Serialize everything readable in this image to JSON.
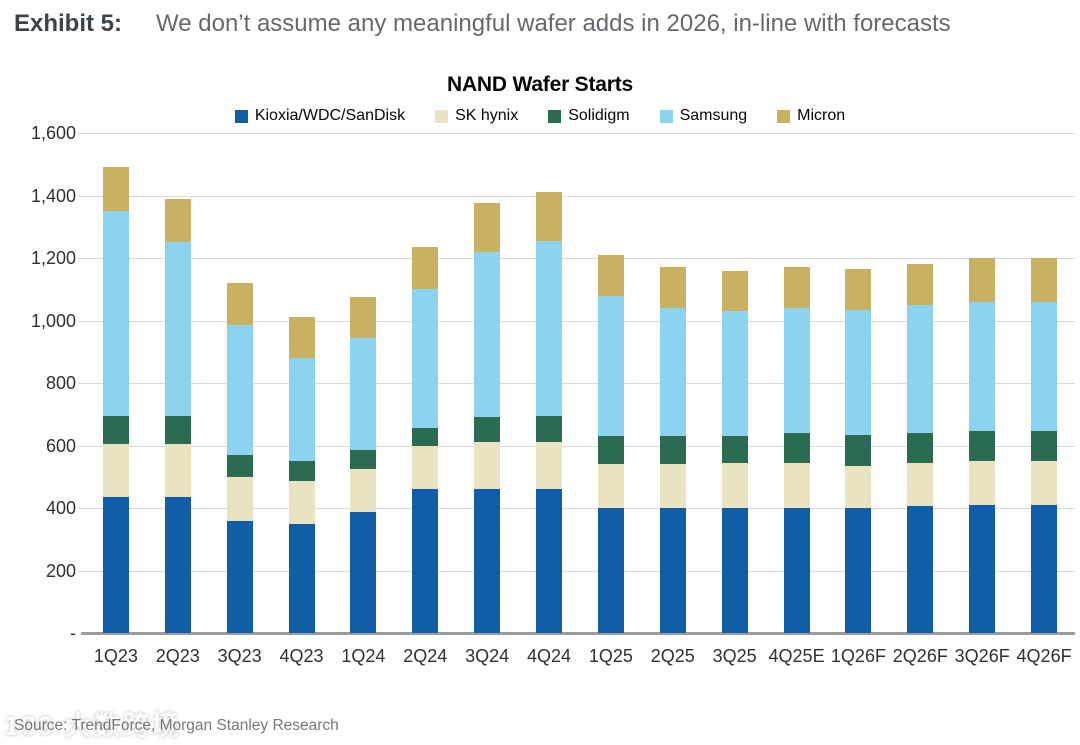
{
  "header": {
    "exhibit_label": "Exhibit 5:",
    "headline": "We don’t assume any meaningful wafer adds in 2026, in-line with forecasts"
  },
  "footer": {
    "source": "Source: TrendForce, Morgan Stanley Research",
    "watermark": "199 大数跨境"
  },
  "chart_data": {
    "type": "bar",
    "stacked": true,
    "title": "NAND Wafer Starts",
    "xlabel": "",
    "ylabel": "",
    "ylim": [
      0,
      1600
    ],
    "ytick_step": 200,
    "ytick_labels_top_to_bottom": [
      "1,600",
      "1,400",
      "1,200",
      "1,000",
      "800",
      "600",
      "400",
      "200",
      "-"
    ],
    "grid": true,
    "legend_position": "top-center",
    "categories": [
      "1Q23",
      "2Q23",
      "3Q23",
      "4Q23",
      "1Q24",
      "2Q24",
      "3Q24",
      "4Q24",
      "1Q25",
      "2Q25",
      "3Q25",
      "4Q25E",
      "1Q26F",
      "2Q26F",
      "3Q26F",
      "4Q26F"
    ],
    "series": [
      {
        "name": "Kioxia/WDC/SanDisk",
        "color": "#0f5ea7",
        "values": [
          435,
          435,
          360,
          350,
          388,
          460,
          460,
          460,
          400,
          400,
          400,
          400,
          400,
          405,
          410,
          410
        ]
      },
      {
        "name": "SK hynix",
        "color": "#eae3c1",
        "values": [
          170,
          170,
          140,
          135,
          137,
          140,
          150,
          150,
          140,
          140,
          145,
          145,
          135,
          140,
          140,
          140
        ]
      },
      {
        "name": "Solidigm",
        "color": "#2a6b52",
        "values": [
          90,
          90,
          70,
          65,
          60,
          55,
          80,
          85,
          90,
          90,
          85,
          95,
          100,
          95,
          95,
          95
        ]
      },
      {
        "name": "Samsung",
        "color": "#8dd3f0",
        "values": [
          655,
          555,
          415,
          330,
          360,
          445,
          530,
          560,
          450,
          410,
          400,
          400,
          400,
          410,
          415,
          415
        ]
      },
      {
        "name": "Micron",
        "color": "#c9b164",
        "values": [
          140,
          140,
          135,
          130,
          130,
          135,
          155,
          155,
          130,
          130,
          130,
          130,
          130,
          130,
          140,
          140
        ]
      }
    ],
    "totals": [
      1490,
      1390,
      1120,
      1010,
      1075,
      1235,
      1375,
      1410,
      1210,
      1170,
      1160,
      1170,
      1165,
      1180,
      1200,
      1200
    ]
  }
}
